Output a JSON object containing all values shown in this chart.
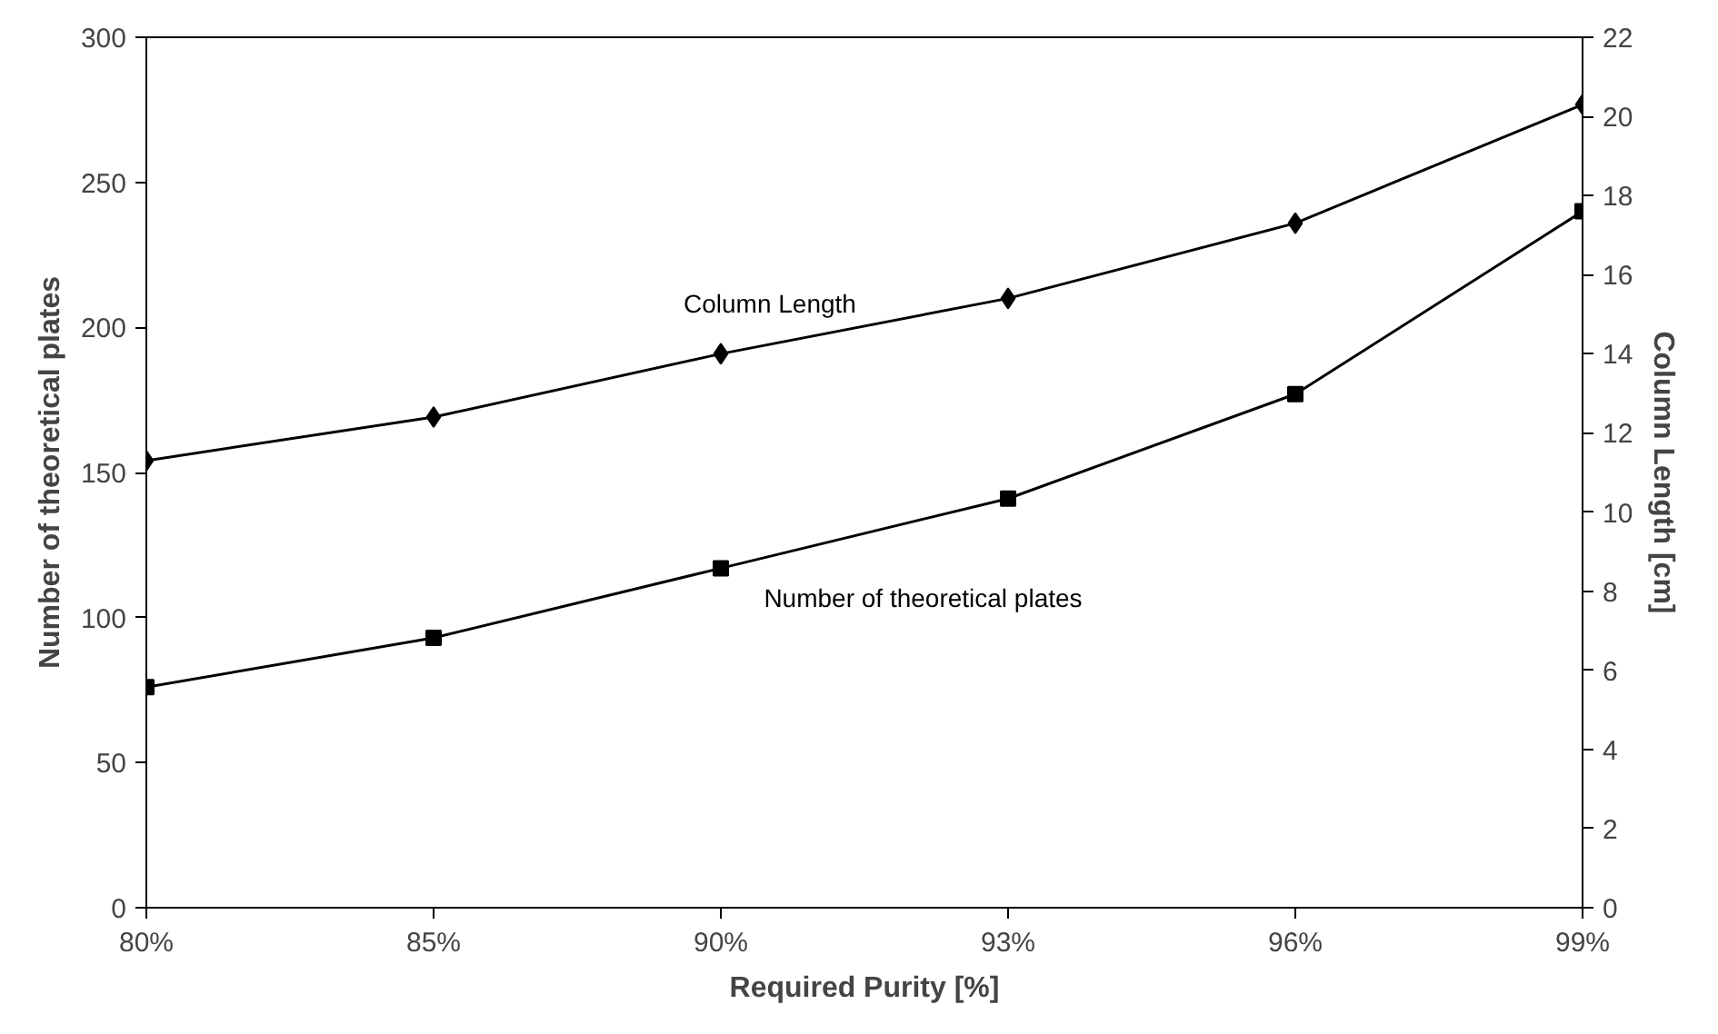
{
  "chart_data": {
    "type": "line",
    "xlabel": "Required Purity [%]",
    "ylabel": "Number of theoretical plates",
    "y2label": "Column Length [cm]",
    "categories": [
      "80%",
      "85%",
      "90%",
      "93%",
      "96%",
      "99%"
    ],
    "series": [
      {
        "name": "Column Length",
        "color": "#000000",
        "axis": "y2",
        "marker": "diamond",
        "values": [
          11.3,
          12.4,
          14.0,
          15.4,
          17.3,
          20.3
        ]
      },
      {
        "name": "Number of theoretical plates",
        "color": "#000000",
        "marker": "square",
        "values": [
          76,
          93,
          117,
          141,
          177,
          240
        ]
      }
    ],
    "ylim": [
      0,
      300
    ],
    "yticks": [
      0,
      50,
      100,
      150,
      200,
      250,
      300
    ],
    "y2lim": [
      0,
      22
    ],
    "y2ticks": [
      0,
      2,
      4,
      6,
      8,
      10,
      12,
      14,
      16,
      18,
      20,
      22
    ],
    "grid": false,
    "line_style": "solid"
  }
}
